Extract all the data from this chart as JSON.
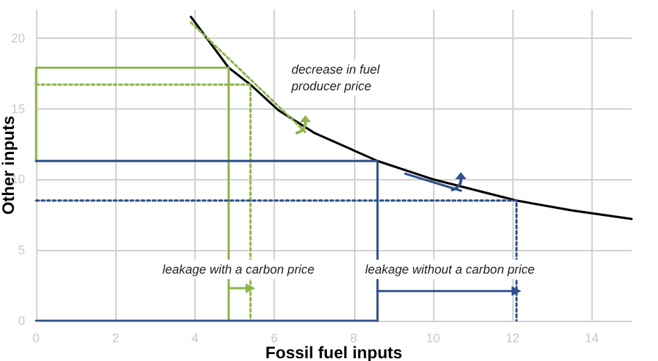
{
  "chart_data": {
    "type": "line",
    "xlabel": "Fossil fuel inputs",
    "ylabel": "Other inputs",
    "xlim": [
      0,
      15
    ],
    "ylim": [
      0,
      22
    ],
    "xticks": [
      0,
      2,
      4,
      6,
      8,
      10,
      12,
      14
    ],
    "yticks": [
      0,
      5,
      10,
      15,
      20
    ],
    "grid": true,
    "marker": "none",
    "series": [
      {
        "color": "#000000",
        "x": [
          3.9,
          4.85,
          5.4,
          6.1,
          7,
          8.6,
          10,
          12.1,
          13.5,
          15
        ],
        "values": [
          21.5,
          17.9,
          16.7,
          14.9,
          13.3,
          11.3,
          10,
          8.5,
          7.8,
          7.2
        ],
        "line_style": "solid"
      },
      {
        "color": "#8db64a",
        "x": [
          0,
          0,
          4.85,
          4.85
        ],
        "values": [
          11.3,
          17.9,
          17.9,
          0
        ],
        "line_style": "solid"
      },
      {
        "color": "#8db64a",
        "x": [
          0,
          5.4,
          5.4
        ],
        "values": [
          16.7,
          16.7,
          0
        ],
        "line_style": "dotted"
      },
      {
        "color": "#8db64a",
        "x": [
          3.9,
          6.8
        ],
        "values": [
          21.1,
          13.3
        ],
        "line_style": "dotted"
      },
      {
        "color": "#2e4f8a",
        "x": [
          0,
          8.6,
          8.6
        ],
        "values": [
          11.3,
          11.3,
          0
        ],
        "line_style": "solid"
      },
      {
        "color": "#2e4f8a",
        "x": [
          0,
          12.1,
          12.1
        ],
        "values": [
          8.5,
          8.5,
          0
        ],
        "line_style": "dotted"
      },
      {
        "color": "#2e4f8a",
        "x": [
          0,
          8.6
        ],
        "values": [
          0,
          0
        ],
        "line_style": "solid"
      },
      {
        "color": "#2e4f8a",
        "x": [
          9.3,
          10.7
        ],
        "values": [
          10.4,
          9.2
        ],
        "line_style": "solid"
      },
      {
        "color": "#8db64a",
        "x": [
          4.85,
          5.4
        ],
        "values": [
          2.3,
          2.3
        ],
        "line_style": "solid",
        "marker": "triangle"
      },
      {
        "color": "#2e4f8a",
        "x": [
          8.6,
          12.1
        ],
        "values": [
          2.1,
          2.1
        ],
        "line_style": "solid",
        "marker": "triangle"
      }
    ],
    "annotations": [
      "decrease in fuel\nproducer price",
      "leakage with a carbon price",
      "leakage without a carbon price"
    ]
  }
}
